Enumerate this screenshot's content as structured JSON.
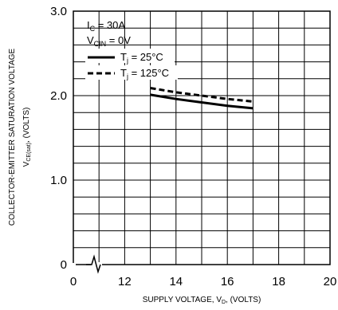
{
  "chart_data": {
    "type": "line",
    "title": "",
    "xlabel": {
      "main": "SUPPLY VOLTAGE, V",
      "sub": "D",
      "tail": ", (VOLTS)"
    },
    "ylabel": {
      "line1": "COLLECTOR-EMITTER SATURATION VOLTAGE",
      "line2_main": "V",
      "line2_sub": "CE(sat)",
      "line2_tail": ", (VOLTS)"
    },
    "x_ticks": [
      "0",
      "12",
      "14",
      "16",
      "18",
      "20"
    ],
    "y_ticks": [
      "0",
      "1.0",
      "2.0",
      "3.0"
    ],
    "xlim": [
      10,
      20
    ],
    "ylim": [
      0,
      3.0
    ],
    "x_axis_break": "0 to 10",
    "y_axis_break": "near 0",
    "grid": true,
    "conditions": [
      {
        "main": "I",
        "sub": "C",
        "tail": " = 30A"
      },
      {
        "main": "V",
        "sub": "CIN",
        "tail": " = 0V"
      }
    ],
    "legend_position": "top-left",
    "series": [
      {
        "name_main": "T",
        "name_sub": "j",
        "name_tail": " = 25°C",
        "style": "solid",
        "x": [
          13,
          14,
          15,
          16,
          17
        ],
        "y": [
          2.01,
          1.96,
          1.92,
          1.88,
          1.85
        ]
      },
      {
        "name_main": "T",
        "name_sub": "j",
        "name_tail": " = 125°C",
        "style": "dashed",
        "x": [
          13,
          14,
          15,
          16,
          17
        ],
        "y": [
          2.09,
          2.04,
          2.0,
          1.96,
          1.93
        ]
      }
    ]
  }
}
